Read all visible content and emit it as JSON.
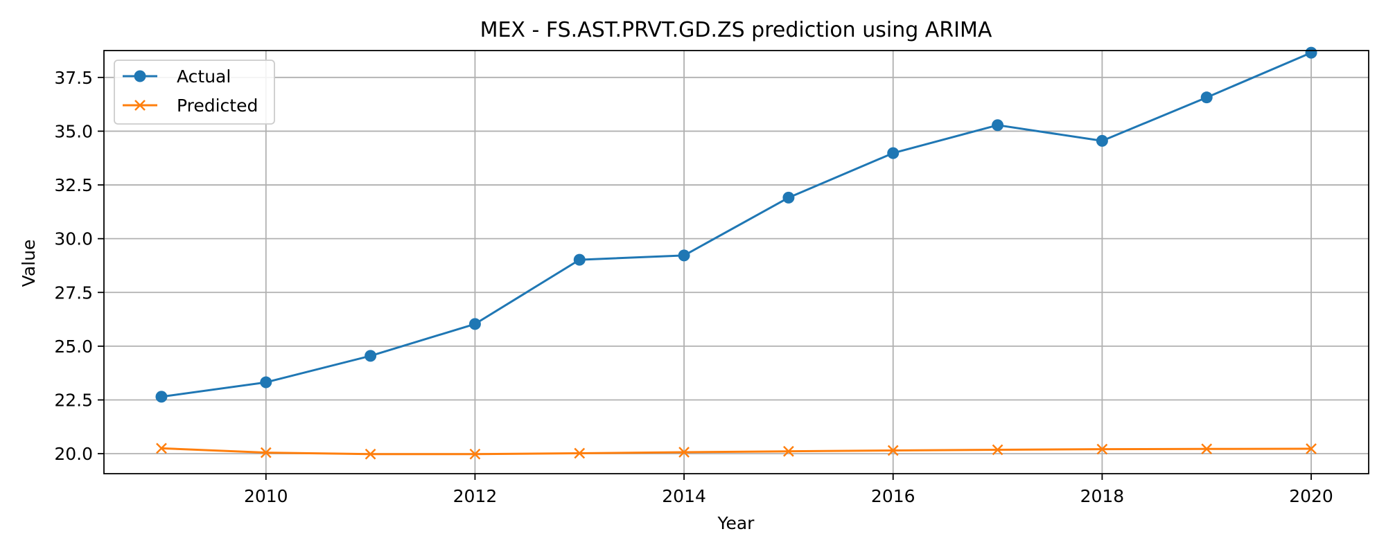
{
  "chart_data": {
    "type": "line",
    "title": "MEX - FS.AST.PRVT.GD.ZS prediction using ARIMA",
    "xlabel": "Year",
    "ylabel": "Value",
    "x": [
      2009,
      2010,
      2011,
      2012,
      2013,
      2014,
      2015,
      2016,
      2017,
      2018,
      2019,
      2020
    ],
    "xlim": [
      2008.45,
      2020.55
    ],
    "ylim": [
      19.07,
      38.75
    ],
    "xticks": [
      2010,
      2012,
      2014,
      2016,
      2018,
      2020
    ],
    "yticks": [
      20.0,
      22.5,
      25.0,
      27.5,
      30.0,
      32.5,
      35.0,
      37.5
    ],
    "ytick_labels": [
      "20.0",
      "22.5",
      "25.0",
      "27.5",
      "30.0",
      "32.5",
      "35.0",
      "37.5"
    ],
    "grid": true,
    "legend_position": "top-left",
    "series": [
      {
        "name": "Actual",
        "color": "#1f77b4",
        "marker": "circle",
        "values": [
          22.65,
          23.32,
          24.55,
          26.03,
          29.02,
          29.22,
          31.91,
          33.98,
          35.28,
          34.55,
          36.57,
          38.65
        ]
      },
      {
        "name": "Predicted",
        "color": "#ff7f0e",
        "marker": "x",
        "values": [
          20.25,
          20.05,
          19.98,
          19.98,
          20.02,
          20.07,
          20.11,
          20.15,
          20.18,
          20.21,
          20.22,
          20.23
        ]
      }
    ]
  }
}
